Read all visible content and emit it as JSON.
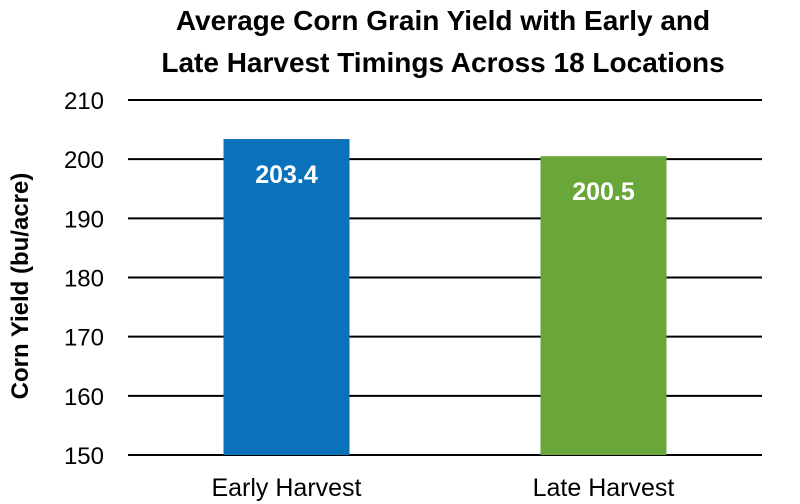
{
  "chart_data": {
    "type": "bar",
    "title_lines": [
      "Average Corn Grain Yield with Early and",
      "Late Harvest Timings Across 18 Locations"
    ],
    "ylabel": "Corn Yield (bu/acre)",
    "xlabel": "",
    "categories": [
      "Early Harvest",
      "Late Harvest"
    ],
    "values": [
      203.4,
      200.5
    ],
    "data_labels": [
      "203.4",
      "200.5"
    ],
    "bar_colors": [
      "#0a72bb",
      "#6aa73a"
    ],
    "ylim": [
      150,
      210
    ],
    "yticks": [
      150,
      160,
      170,
      180,
      190,
      200,
      210
    ],
    "grid": true,
    "legend": "none"
  }
}
